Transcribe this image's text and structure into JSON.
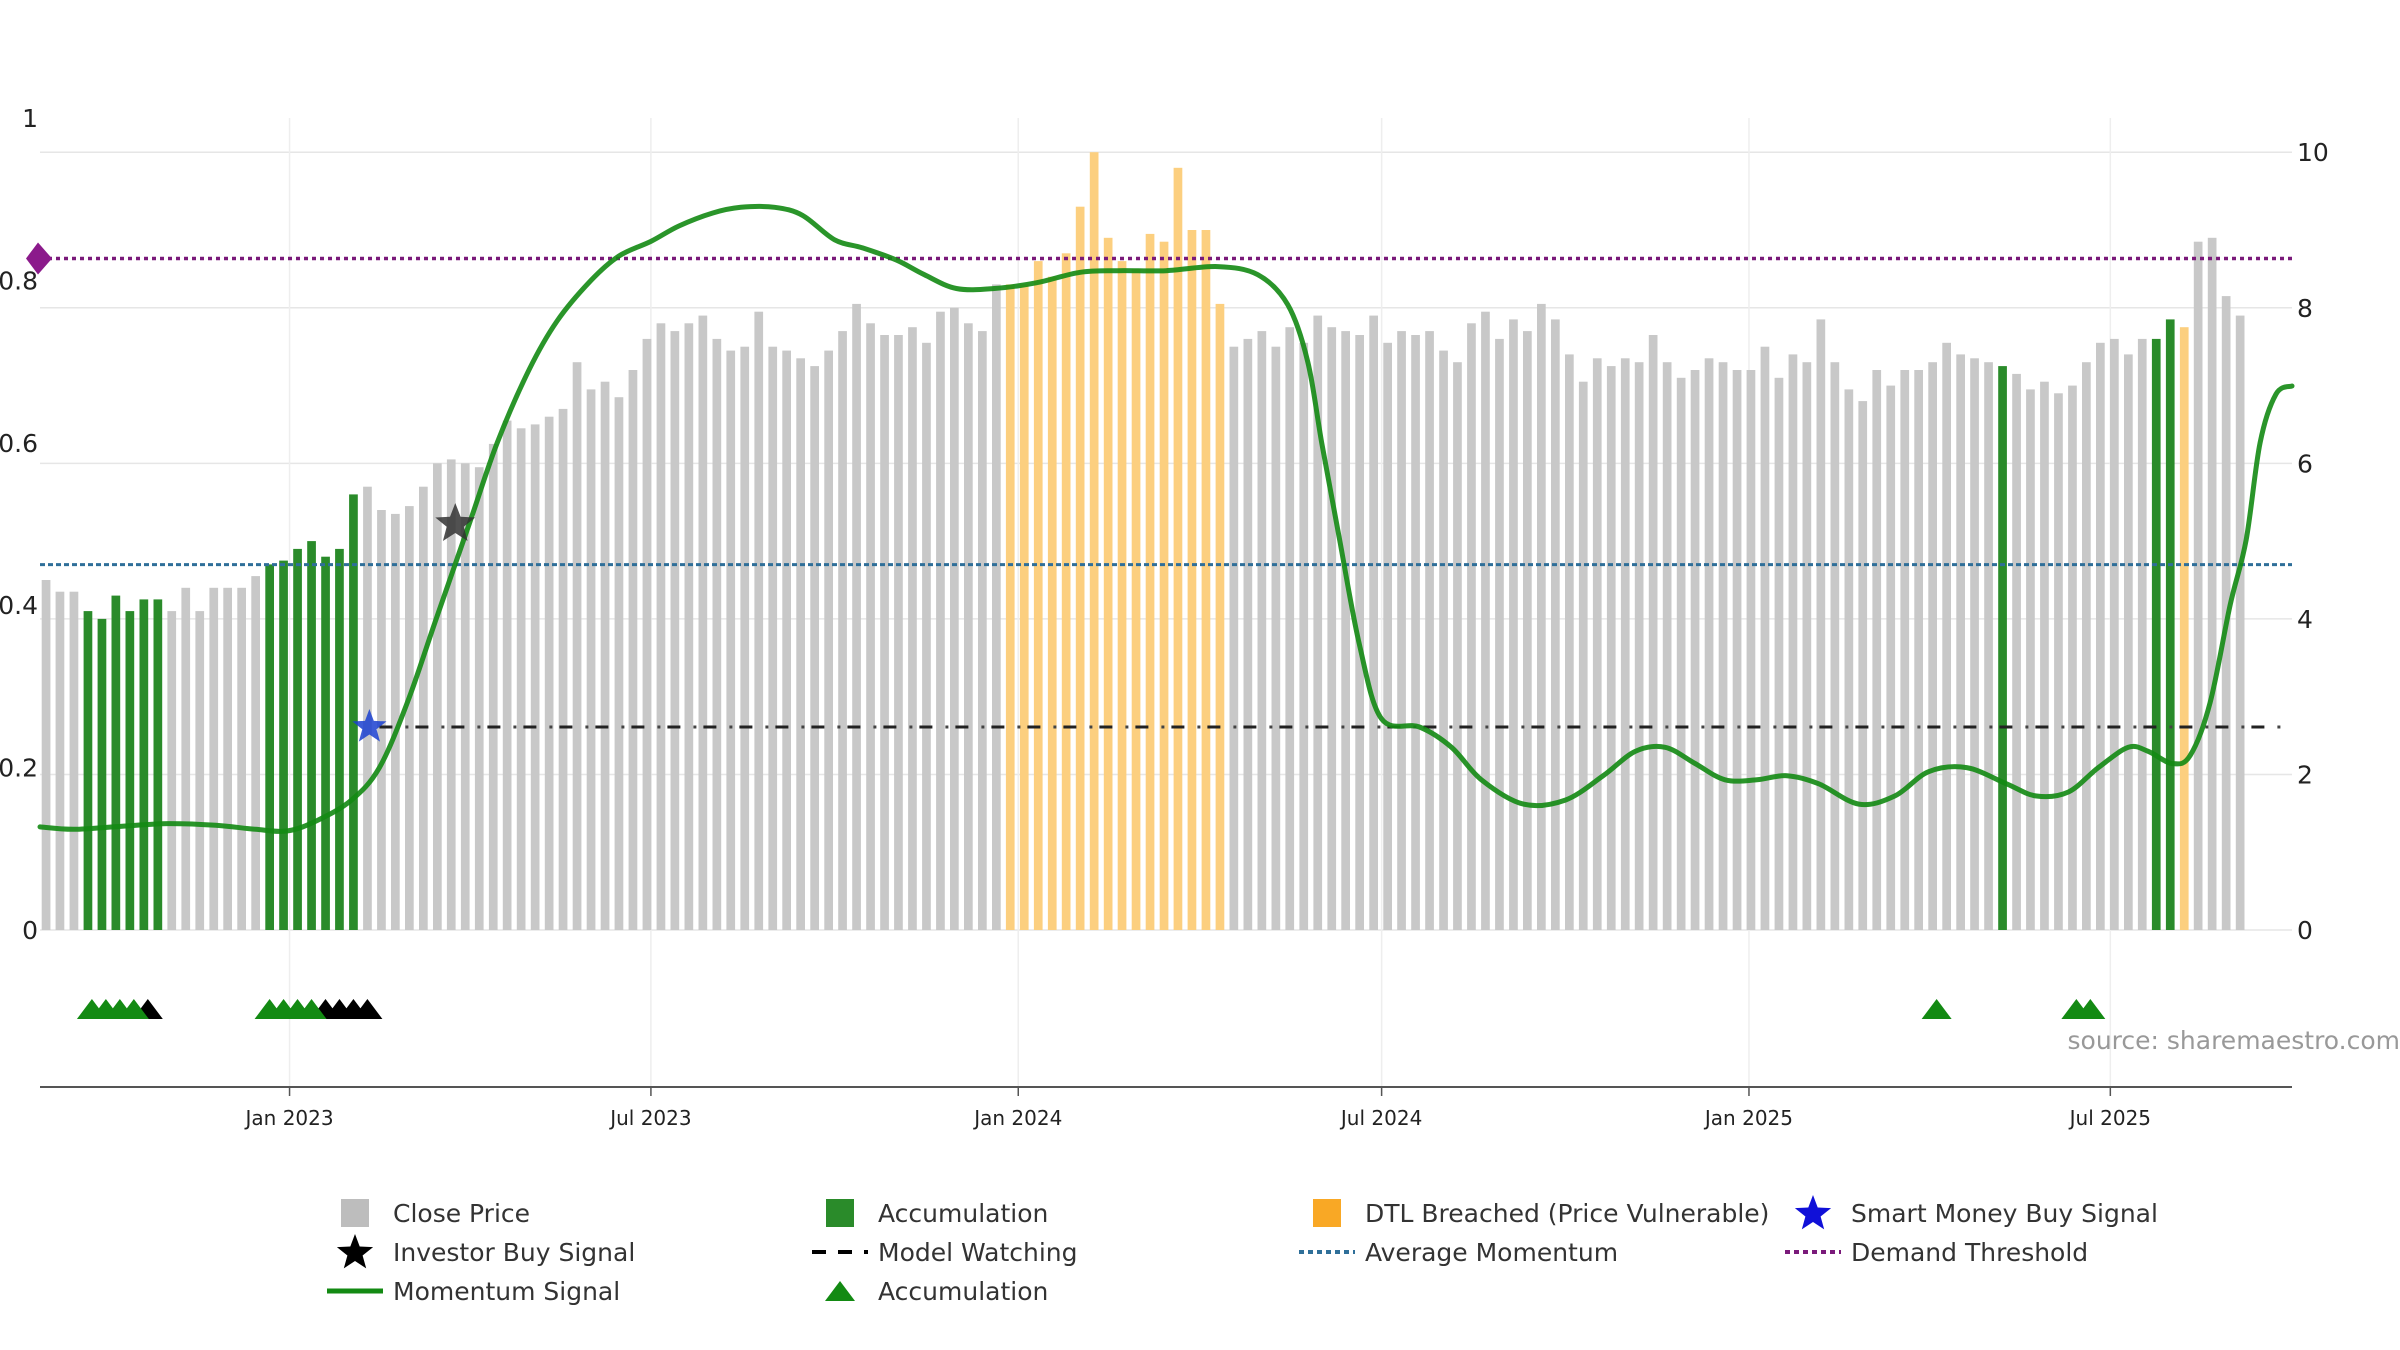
{
  "chart_data": {
    "type": "bar",
    "title": "",
    "x_axis": {
      "ticks": [
        "Jan 2023",
        "Jul 2023",
        "Jan 2024",
        "Jul 2024",
        "Jan 2025",
        "Jul 2025"
      ],
      "tick_dates": [
        "2023-01-01",
        "2023-07-01",
        "2024-01-01",
        "2024-07-01",
        "2025-01-01",
        "2025-07-01"
      ],
      "range": [
        "2022-08-29",
        "2025-09-30"
      ]
    },
    "y_left": {
      "range": [
        0,
        1
      ],
      "ticks": [
        "0",
        "0.2",
        "0.4",
        "0.6",
        "0.8",
        "1"
      ],
      "tick_values": [
        0,
        0.2,
        0.4,
        0.6,
        0.8,
        1
      ]
    },
    "y_right": {
      "range": [
        0,
        10.44
      ],
      "ticks": [
        "0",
        "2",
        "4",
        "6",
        "8",
        "10"
      ],
      "tick_values": [
        0,
        2,
        4,
        6,
        8,
        10
      ]
    },
    "bar_start": "2022-09-01",
    "bar_interval_days": 7,
    "bars_close_price": [
      4.5,
      4.35,
      4.35,
      4.1,
      4,
      4.3,
      4.1,
      4.25,
      4.25,
      4.1,
      4.4,
      4.1,
      4.4,
      4.4,
      4.4,
      4.55,
      4.7,
      4.75,
      4.9,
      5,
      4.8,
      4.9,
      5.6,
      5.7,
      5.4,
      5.35,
      5.45,
      5.7,
      6,
      6.05,
      6,
      5.95,
      6.25,
      6.55,
      6.45,
      6.5,
      6.6,
      6.7,
      7.3,
      6.95,
      7.05,
      6.85,
      7.2,
      7.6,
      7.8,
      7.7,
      7.8,
      7.9,
      7.6,
      7.45,
      7.5,
      7.95,
      7.5,
      7.45,
      7.35,
      7.25,
      7.45,
      7.7,
      8.05,
      7.8,
      7.65,
      7.65,
      7.75,
      7.55,
      7.95,
      8,
      7.8,
      7.7,
      8.3,
      8.3,
      8.3,
      8.6,
      8.4,
      8.7,
      9.3,
      10,
      8.9,
      8.6,
      8.5,
      8.95,
      8.85,
      9.8,
      9,
      9,
      8.05,
      7.5,
      7.6,
      7.7,
      7.5,
      7.75,
      7.55,
      7.9,
      7.75,
      7.7,
      7.65,
      7.9,
      7.55,
      7.7,
      7.65,
      7.7,
      7.45,
      7.3,
      7.8,
      7.95,
      7.6,
      7.85,
      7.7,
      8.05,
      7.85,
      7.4,
      7.05,
      7.35,
      7.25,
      7.35,
      7.3,
      7.65,
      7.3,
      7.1,
      7.2,
      7.35,
      7.3,
      7.2,
      7.2,
      7.5,
      7.1,
      7.4,
      7.3,
      7.85,
      7.3,
      6.95,
      6.8,
      7.2,
      7,
      7.2,
      7.2,
      7.3,
      7.55,
      7.4,
      7.35,
      7.3,
      7.25,
      7.15,
      6.95,
      7.05,
      6.9,
      7,
      7.3,
      7.55,
      7.6,
      7.4,
      7.6,
      7.6,
      7.85,
      7.75,
      8.85,
      8.9,
      8.15,
      7.9
    ],
    "bars_accumulation_index": [
      3,
      4,
      5,
      6,
      7,
      8,
      16,
      17,
      18,
      19,
      20,
      21,
      22,
      140,
      151,
      152
    ],
    "bars_dtl_breached_index": [
      69,
      70,
      71,
      72,
      73,
      74,
      75,
      76,
      77,
      78,
      79,
      80,
      81,
      82,
      83,
      84,
      152,
      153
    ],
    "momentum_signal": [
      [
        "2022-08-29",
        0.127
      ],
      [
        "2022-09-15",
        0.124
      ],
      [
        "2022-10-10",
        0.128
      ],
      [
        "2022-11-01",
        0.131
      ],
      [
        "2022-11-25",
        0.129
      ],
      [
        "2022-12-15",
        0.124
      ],
      [
        "2022-12-31",
        0.122
      ],
      [
        "2023-01-15",
        0.135
      ],
      [
        "2023-02-01",
        0.16
      ],
      [
        "2023-02-15",
        0.2
      ],
      [
        "2023-03-01",
        0.28
      ],
      [
        "2023-03-15",
        0.38
      ],
      [
        "2023-04-01",
        0.5
      ],
      [
        "2023-04-15",
        0.6
      ],
      [
        "2023-05-01",
        0.69
      ],
      [
        "2023-05-15",
        0.75
      ],
      [
        "2023-06-01",
        0.8
      ],
      [
        "2023-06-15",
        0.83
      ],
      [
        "2023-07-01",
        0.848
      ],
      [
        "2023-07-15",
        0.867
      ],
      [
        "2023-08-01",
        0.883
      ],
      [
        "2023-08-15",
        0.89
      ],
      [
        "2023-09-01",
        0.89
      ],
      [
        "2023-09-15",
        0.88
      ],
      [
        "2023-10-01",
        0.85
      ],
      [
        "2023-10-15",
        0.84
      ],
      [
        "2023-11-01",
        0.825
      ],
      [
        "2023-11-15",
        0.807
      ],
      [
        "2023-12-01",
        0.79
      ],
      [
        "2023-12-20",
        0.79
      ],
      [
        "2024-01-10",
        0.797
      ],
      [
        "2024-02-01",
        0.81
      ],
      [
        "2024-02-20",
        0.812
      ],
      [
        "2024-03-15",
        0.812
      ],
      [
        "2024-04-10",
        0.817
      ],
      [
        "2024-04-30",
        0.807
      ],
      [
        "2024-05-15",
        0.77
      ],
      [
        "2024-05-25",
        0.7
      ],
      [
        "2024-06-01",
        0.6
      ],
      [
        "2024-06-10",
        0.48
      ],
      [
        "2024-06-20",
        0.35
      ],
      [
        "2024-07-01",
        0.26
      ],
      [
        "2024-07-20",
        0.25
      ],
      [
        "2024-08-05",
        0.225
      ],
      [
        "2024-08-20",
        0.185
      ],
      [
        "2024-09-10",
        0.155
      ],
      [
        "2024-10-01",
        0.16
      ],
      [
        "2024-10-20",
        0.19
      ],
      [
        "2024-11-05",
        0.22
      ],
      [
        "2024-11-20",
        0.225
      ],
      [
        "2024-12-05",
        0.205
      ],
      [
        "2024-12-20",
        0.185
      ],
      [
        "2025-01-05",
        0.185
      ],
      [
        "2025-01-20",
        0.19
      ],
      [
        "2025-02-05",
        0.18
      ],
      [
        "2025-02-25",
        0.155
      ],
      [
        "2025-03-15",
        0.165
      ],
      [
        "2025-04-01",
        0.195
      ],
      [
        "2025-04-20",
        0.2
      ],
      [
        "2025-05-10",
        0.18
      ],
      [
        "2025-05-25",
        0.165
      ],
      [
        "2025-06-10",
        0.17
      ],
      [
        "2025-06-25",
        0.2
      ],
      [
        "2025-07-10",
        0.225
      ],
      [
        "2025-07-20",
        0.22
      ],
      [
        "2025-08-01",
        0.205
      ],
      [
        "2025-08-10",
        0.215
      ],
      [
        "2025-08-20",
        0.28
      ],
      [
        "2025-08-30",
        0.4
      ],
      [
        "2025-09-07",
        0.48
      ],
      [
        "2025-09-14",
        0.6
      ],
      [
        "2025-09-22",
        0.66
      ],
      [
        "2025-09-30",
        0.67
      ]
    ],
    "average_momentum": 0.45,
    "demand_threshold": 0.827,
    "model_watching": {
      "value": 0.25,
      "from": "2023-02-15",
      "to": "2025-09-25"
    },
    "investor_buy_signal": [
      {
        "date": "2023-03-25",
        "value": 0.5
      }
    ],
    "smart_money_buy_signal": [
      {
        "date": "2023-02-10",
        "value": 0.25
      }
    ],
    "accumulation_markers": [
      "2022-09-24",
      "2022-10-01",
      "2022-10-08",
      "2022-10-15",
      "2022-12-22",
      "2022-12-29",
      "2023-01-05",
      "2023-01-12",
      "2025-04-05",
      "2025-06-14",
      "2025-06-21"
    ],
    "signal_markers": [
      "2022-10-22",
      "2023-01-19",
      "2023-01-26",
      "2023-02-02",
      "2023-02-09"
    ],
    "legend": [
      {
        "label": "Close Price",
        "symbol": "square",
        "color": "#bdbdbd"
      },
      {
        "label": "Accumulation",
        "symbol": "square",
        "color": "#2a8b2a"
      },
      {
        "label": "DTL Breached (Price Vulnerable)",
        "symbol": "square",
        "color": "#f9a825"
      },
      {
        "label": "Smart Money Buy Signal",
        "symbol": "star",
        "color": "#1010d8"
      },
      {
        "label": "Investor Buy Signal",
        "symbol": "star",
        "color": "#000000"
      },
      {
        "label": "Model Watching",
        "symbol": "dash",
        "color": "#000000"
      },
      {
        "label": "Average Momentum",
        "symbol": "dot",
        "color": "#2f6f99"
      },
      {
        "label": "Demand Threshold",
        "symbol": "dot",
        "color": "#7a1a7a"
      },
      {
        "label": "Momentum Signal",
        "symbol": "line",
        "color": "#138a13"
      },
      {
        "label": "Accumulation",
        "symbol": "triangle",
        "color": "#138a13"
      }
    ],
    "source_note": "source: sharemaestro.com"
  },
  "colors": {
    "close_price": "#c8c8c8",
    "accumulation": "#2a8b2a",
    "dtl_breached": "#fccf7f",
    "momentum": "#138a13",
    "average_momentum": "#2f6f99",
    "demand_threshold": "#7a1a7a",
    "smart_money": "#1a3fd0",
    "investor": "#333333",
    "grid": "#e6e6e6"
  }
}
